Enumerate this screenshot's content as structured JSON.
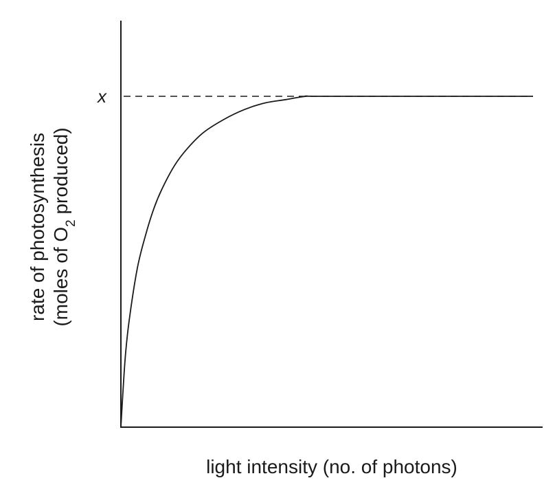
{
  "chart_data": {
    "type": "line",
    "xlabel": "light intensity (no. of photons)",
    "ylabel": {
      "line1": "rate of photosynthesis",
      "line2_before": "(moles of O",
      "line2_sub": "2",
      "line2_after": " produced)"
    },
    "grid": false,
    "legend": "none",
    "x_ticks": [],
    "y_ticks": [],
    "reference_line": {
      "label": "x",
      "y": 1.0,
      "style": "dashed"
    },
    "xlim": [
      0,
      1
    ],
    "ylim": [
      0,
      1.25
    ],
    "series": [
      {
        "x": [
          0,
          0.01,
          0.02,
          0.04,
          0.06,
          0.08,
          0.1,
          0.13,
          0.16,
          0.2,
          0.25,
          0.3,
          0.35,
          0.4,
          0.45,
          0.5,
          1.0
        ],
        "y": [
          0.0,
          0.2,
          0.32,
          0.48,
          0.58,
          0.66,
          0.72,
          0.79,
          0.84,
          0.89,
          0.93,
          0.96,
          0.98,
          0.99,
          1.0,
          1.0,
          1.0
        ]
      }
    ]
  }
}
